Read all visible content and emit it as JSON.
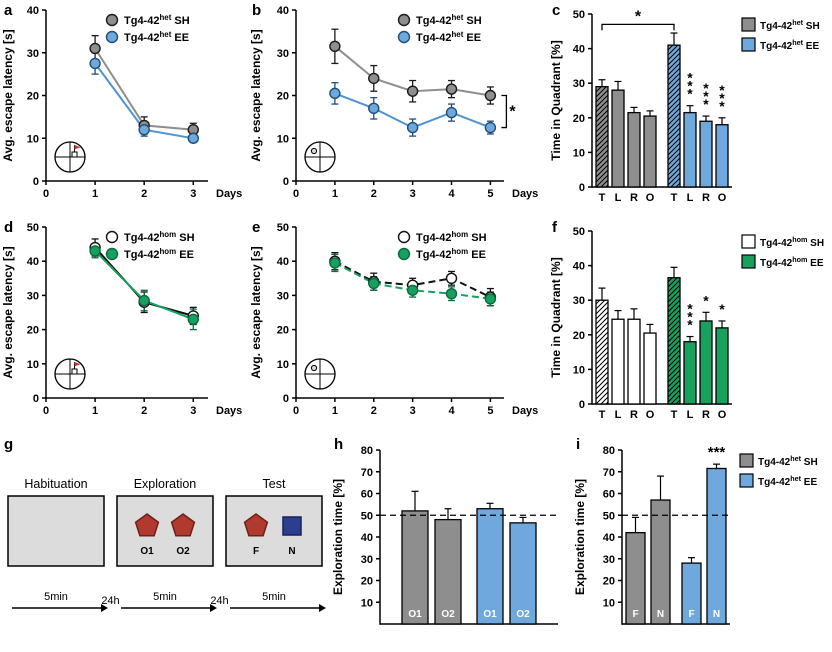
{
  "panels": {
    "a": {
      "letter": "a"
    },
    "b": {
      "letter": "b"
    },
    "c": {
      "letter": "c"
    },
    "d": {
      "letter": "d"
    },
    "e": {
      "letter": "e"
    },
    "f": {
      "letter": "f"
    },
    "g": {
      "letter": "g"
    },
    "h": {
      "letter": "h"
    },
    "i": {
      "letter": "i"
    }
  },
  "colors": {
    "sh_het": "#8e8e8e",
    "ee_het_fill": "#6fa8dc",
    "ee_het_line": "#4f94d0",
    "ee_het_edge": "#1f4e79",
    "sh_hom_fill": "#ffffff",
    "sh_hom_line": "#111111",
    "ee_hom": "#17a05e",
    "ee_hom_edge": "#0b6b3c",
    "object_red": "#b03a2e",
    "object_blue": "#2c3e8f",
    "box_fill": "#dcdcdc"
  },
  "chart_data": [
    {
      "id": "a",
      "type": "line",
      "ylabel": "Avg. escape latency [s]",
      "xlabel": "Days",
      "xlim": [
        0,
        3.3
      ],
      "xticks": [
        0,
        1,
        2,
        3
      ],
      "ylim": [
        0,
        40
      ],
      "yticks": [
        0,
        10,
        20,
        30,
        40
      ],
      "inset": "platform-flag",
      "legend_pos": "top-right-inside",
      "series": [
        {
          "name": "Tg4-42|het| SH",
          "x": [
            1,
            2,
            3
          ],
          "y": [
            31,
            13,
            12
          ],
          "err": [
            3,
            2,
            1.5
          ],
          "line": "#8e8e8e",
          "marker_fill": "#8e8e8e",
          "marker_edge": "#1a1a1a",
          "dash": ""
        },
        {
          "name": "Tg4-42|het| EE",
          "x": [
            1,
            2,
            3
          ],
          "y": [
            27.5,
            12,
            10
          ],
          "err": [
            2.5,
            1.5,
            1
          ],
          "line": "#4f94d0",
          "marker_fill": "#6fa8dc",
          "marker_edge": "#1f4e79",
          "dash": ""
        }
      ]
    },
    {
      "id": "b",
      "type": "line",
      "ylabel": "Avg. escape latency [s]",
      "xlabel": "Days",
      "xlim": [
        0,
        5.35
      ],
      "xticks": [
        0,
        1,
        2,
        3,
        4,
        5
      ],
      "ylim": [
        0,
        40
      ],
      "yticks": [
        0,
        10,
        20,
        30,
        40
      ],
      "inset": "platform-dot",
      "legend_pos": "top-right-inside",
      "sig": {
        "x": 5,
        "y1": 20,
        "y2": 12.5,
        "label": "*"
      },
      "series": [
        {
          "name": "Tg4-42|het| SH",
          "x": [
            1,
            2,
            3,
            4,
            5
          ],
          "y": [
            31.5,
            24,
            21,
            21.5,
            20
          ],
          "err": [
            4,
            3,
            2.5,
            2,
            2
          ],
          "line": "#8e8e8e",
          "marker_fill": "#8e8e8e",
          "marker_edge": "#1a1a1a",
          "dash": ""
        },
        {
          "name": "Tg4-42|het| EE",
          "x": [
            1,
            2,
            3,
            4,
            5
          ],
          "y": [
            20.5,
            17,
            12.5,
            16,
            12.5
          ],
          "err": [
            2.5,
            2.5,
            2,
            2,
            1.5
          ],
          "line": "#4f94d0",
          "marker_fill": "#6fa8dc",
          "marker_edge": "#1f4e79",
          "dash": ""
        }
      ]
    },
    {
      "id": "c",
      "type": "bar",
      "ylabel": "Time in Quadrant [%]",
      "ylim": [
        0,
        50
      ],
      "yticks": [
        0,
        10,
        20,
        30,
        40,
        50
      ],
      "star_orient": "v",
      "legend": "right",
      "labels_inside": false,
      "bracket": {
        "from": [
          0,
          0
        ],
        "to": [
          1,
          0
        ],
        "y": 47,
        "label": "*"
      },
      "groups": [
        {
          "name": "Tg4-42|het| SH",
          "fill": "#8e8e8e",
          "categories": [
            "T",
            "L",
            "R",
            "O"
          ],
          "values": [
            29,
            28,
            21.5,
            20.5
          ],
          "err": [
            2,
            2.5,
            1.5,
            1.5
          ],
          "hatch": [
            true,
            false,
            false,
            false
          ],
          "stars": [
            "",
            "",
            "",
            ""
          ]
        },
        {
          "name": "Tg4-42|het| EE",
          "fill": "#6fa8dc",
          "categories": [
            "T",
            "L",
            "R",
            "O"
          ],
          "values": [
            41,
            21.5,
            19,
            18
          ],
          "err": [
            3.5,
            2,
            1.5,
            2
          ],
          "hatch": [
            true,
            false,
            false,
            false
          ],
          "stars": [
            "",
            "***",
            "***",
            "***"
          ]
        }
      ]
    },
    {
      "id": "d",
      "type": "line",
      "ylabel": "Avg. escape latency [s]",
      "xlabel": "Days",
      "xlim": [
        0,
        3.3
      ],
      "xticks": [
        0,
        1,
        2,
        3
      ],
      "ylim": [
        0,
        50
      ],
      "yticks": [
        0,
        10,
        20,
        30,
        40,
        50
      ],
      "inset": "platform-flag",
      "legend_pos": "top-right-inside",
      "series": [
        {
          "name": "Tg4-42|hom| SH",
          "x": [
            1,
            2,
            3
          ],
          "y": [
            44,
            28,
            24
          ],
          "err": [
            2.5,
            3,
            2.5
          ],
          "line": "#111111",
          "marker_fill": "#ffffff",
          "marker_edge": "#111111",
          "dash": ""
        },
        {
          "name": "Tg4-42|hom| EE",
          "x": [
            1,
            2,
            3
          ],
          "y": [
            43,
            28.5,
            23
          ],
          "err": [
            2,
            3,
            3
          ],
          "line": "#17a05e",
          "marker_fill": "#17a05e",
          "marker_edge": "#0b6b3c",
          "dash": ""
        }
      ]
    },
    {
      "id": "e",
      "type": "line",
      "ylabel": "Avg. escape latency [s]",
      "xlabel": "Days",
      "xlim": [
        0,
        5.35
      ],
      "xticks": [
        0,
        1,
        2,
        3,
        4,
        5
      ],
      "ylim": [
        0,
        50
      ],
      "yticks": [
        0,
        10,
        20,
        30,
        40,
        50
      ],
      "inset": "platform-dot",
      "legend_pos": "top-right-inside",
      "series": [
        {
          "name": "Tg4-42|hom| SH",
          "x": [
            1,
            2,
            3,
            4,
            5
          ],
          "y": [
            40,
            34,
            33,
            35,
            29.5
          ],
          "err": [
            2.5,
            2.5,
            2,
            2,
            2.5
          ],
          "line": "#111111",
          "marker_fill": "#ffffff",
          "marker_edge": "#111111",
          "dash": "7 4"
        },
        {
          "name": "Tg4-42|hom| EE",
          "x": [
            1,
            2,
            3,
            4,
            5
          ],
          "y": [
            39.5,
            33.5,
            31.5,
            30.5,
            29
          ],
          "err": [
            2.5,
            2,
            2,
            2,
            2
          ],
          "line": "#17a05e",
          "marker_fill": "#17a05e",
          "marker_edge": "#0b6b3c",
          "dash": "7 4"
        }
      ]
    },
    {
      "id": "f",
      "type": "bar",
      "ylabel": "Time in Quadrant [%]",
      "ylim": [
        0,
        50
      ],
      "yticks": [
        0,
        10,
        20,
        30,
        40,
        50
      ],
      "star_orient": "v",
      "legend": "right",
      "labels_inside": false,
      "groups": [
        {
          "name": "Tg4-42|hom| SH",
          "fill": "#ffffff",
          "categories": [
            "T",
            "L",
            "R",
            "O"
          ],
          "values": [
            30,
            24.5,
            24.5,
            20.5
          ],
          "err": [
            3.5,
            2.5,
            3,
            2.5
          ],
          "hatch": [
            true,
            false,
            false,
            false
          ],
          "stars": [
            "",
            "",
            "",
            ""
          ]
        },
        {
          "name": "Tg4-42|hom| EE",
          "fill": "#17a05e",
          "categories": [
            "T",
            "L",
            "R",
            "O"
          ],
          "values": [
            36.5,
            18,
            24,
            22
          ],
          "err": [
            3,
            1.5,
            2.5,
            2
          ],
          "hatch": [
            true,
            false,
            false,
            false
          ],
          "stars": [
            "",
            "***",
            "*",
            "*"
          ]
        }
      ]
    },
    {
      "id": "h",
      "type": "bar",
      "ylabel": "Exploration time [%]",
      "ylim": [
        0,
        80
      ],
      "yticks": [
        10,
        20,
        30,
        40,
        50,
        60,
        70,
        80
      ],
      "dashline": 50,
      "labels_inside": true,
      "star_orient": "h",
      "legend": null,
      "groups": [
        {
          "name": "Tg4-42|het| SH",
          "fill": "#8e8e8e",
          "categories": [
            "O1",
            "O2"
          ],
          "values": [
            52,
            48
          ],
          "err": [
            9,
            5
          ],
          "hatch": [
            false,
            false
          ],
          "stars": [
            "",
            ""
          ]
        },
        {
          "name": "Tg4-42|het| EE",
          "fill": "#6fa8dc",
          "categories": [
            "O1",
            "O2"
          ],
          "values": [
            53,
            46.5
          ],
          "err": [
            2.5,
            2.5
          ],
          "hatch": [
            false,
            false
          ],
          "stars": [
            "",
            ""
          ]
        }
      ]
    },
    {
      "id": "i",
      "type": "bar",
      "ylabel": "Exploration time [%]",
      "ylim": [
        0,
        80
      ],
      "yticks": [
        10,
        20,
        30,
        40,
        50,
        60,
        70,
        80
      ],
      "dashline": 50,
      "labels_inside": true,
      "star_orient": "h",
      "legend": "right",
      "groups": [
        {
          "name": "Tg4-42|het| SH",
          "fill": "#8e8e8e",
          "categories": [
            "F",
            "N"
          ],
          "values": [
            42,
            57
          ],
          "err": [
            7,
            11
          ],
          "hatch": [
            false,
            false
          ],
          "stars": [
            "",
            ""
          ]
        },
        {
          "name": "Tg4-42|het| EE",
          "fill": "#6fa8dc",
          "categories": [
            "F",
            "N"
          ],
          "values": [
            28,
            71.5
          ],
          "err": [
            2.5,
            2
          ],
          "hatch": [
            false,
            false
          ],
          "stars": [
            "",
            "***"
          ]
        }
      ]
    }
  ],
  "diagram": {
    "phases": [
      {
        "title": "Habituation",
        "objects": []
      },
      {
        "title": "Exploration",
        "objects": [
          {
            "shape": "pentagon",
            "color": "#b03a2e",
            "edge": "#6e1f18",
            "label": "O1"
          },
          {
            "shape": "pentagon",
            "color": "#b03a2e",
            "edge": "#6e1f18",
            "label": "O2"
          }
        ]
      },
      {
        "title": "Test",
        "objects": [
          {
            "shape": "pentagon",
            "color": "#b03a2e",
            "edge": "#6e1f18",
            "label": "F"
          },
          {
            "shape": "square",
            "color": "#2c3e8f",
            "edge": "#16205c",
            "label": "N"
          }
        ]
      }
    ],
    "timeline": [
      "5min",
      "24h",
      "5min",
      "24h",
      "5min"
    ],
    "box_fill": "#dcdcdc"
  }
}
